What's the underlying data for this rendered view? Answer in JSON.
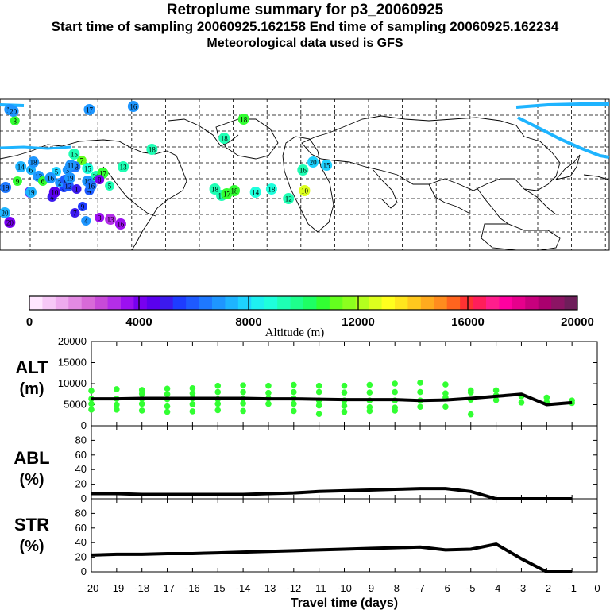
{
  "header": {
    "title": "Retroplume summary for p3_20060925",
    "sampling": "Start time of sampling 20060925.162158     End time of sampling 20060925.162234",
    "met": "Meteorological data used is GFS"
  },
  "colorbar": {
    "tick_labels": [
      "0",
      "4000",
      "8000",
      "12000",
      "16000",
      "20000"
    ],
    "title": "Altitude (m)",
    "colors": [
      "#ffe6ff",
      "#f7c8f7",
      "#eeaaee",
      "#e38ae3",
      "#d86ad8",
      "#c84ad8",
      "#b42ee8",
      "#9c10f0",
      "#7800f0",
      "#5a00ee",
      "#3c1aee",
      "#1e3cff",
      "#1e5aff",
      "#1e78ff",
      "#1e96ff",
      "#1eb4ff",
      "#1ed2ff",
      "#1ef0f0",
      "#1effdc",
      "#1effb4",
      "#1eff8c",
      "#1eff64",
      "#32ff32",
      "#64ff1e",
      "#8cff1e",
      "#b4ff1e",
      "#dcff1e",
      "#ffff1e",
      "#ffe61e",
      "#ffc81e",
      "#ffaa1e",
      "#ff8c1e",
      "#ff641e",
      "#ff3232",
      "#ff1e5a",
      "#ff1e8c",
      "#ff00a0",
      "#e6008c",
      "#c8007d",
      "#aa006e",
      "#8c1464",
      "#6e1e5a"
    ]
  },
  "map": {
    "labels": [
      {
        "t": "20",
        "c": "#1eb4ff",
        "lon": -177,
        "lat": -29
      },
      {
        "t": "19",
        "c": "#1e78ff",
        "lon": -175,
        "lat": -13
      },
      {
        "t": "5",
        "c": "#1ed2ff",
        "lon": -115,
        "lat": -3
      },
      {
        "t": "6",
        "c": "#1eb4ff",
        "lon": -145,
        "lat": -2
      },
      {
        "t": "3",
        "c": "#1e96ff",
        "lon": -102,
        "lat": -2
      },
      {
        "t": "15",
        "c": "#1effdc",
        "lon": -78,
        "lat": -1
      },
      {
        "t": "20",
        "c": "#1effb4",
        "lon": -68,
        "lat": -6
      },
      {
        "t": "17",
        "c": "#32ff32",
        "lon": -60,
        "lat": -4
      },
      {
        "t": "13",
        "c": "#1effb4",
        "lon": -36,
        "lat": 0
      },
      {
        "t": "4",
        "c": "#3c1aee",
        "lon": -120,
        "lat": -19
      },
      {
        "t": "4",
        "c": "#1e5aff",
        "lon": -76,
        "lat": -15
      },
      {
        "t": "4",
        "c": "#1e96ff",
        "lon": -80,
        "lat": -34
      },
      {
        "t": "3",
        "c": "#1e3cff",
        "lon": -106,
        "lat": -13
      },
      {
        "t": "11",
        "c": "#7800f0",
        "lon": -146,
        "lat": -16
      },
      {
        "t": "10",
        "c": "#5a00ee",
        "lon": -117,
        "lat": -16
      },
      {
        "t": "20",
        "c": "#7800f0",
        "lon": -170,
        "lat": -35
      },
      {
        "t": "18",
        "c": "#1effb4",
        "lon": -2,
        "lat": 11
      },
      {
        "t": "18",
        "c": "#32ff32",
        "lon": 72,
        "lat": 30
      },
      {
        "t": "18",
        "c": "#1effb4",
        "lon": 49,
        "lat": 18
      },
      {
        "t": "18",
        "c": "#1effb4",
        "lon": 38,
        "lat": -14
      },
      {
        "t": "16",
        "c": "#1effb4",
        "lon": 46,
        "lat": -18
      },
      {
        "t": "17",
        "c": "#32ff32",
        "lon": 52,
        "lat": -17
      },
      {
        "t": "18",
        "c": "#32ff32",
        "lon": 61,
        "lat": -15
      },
      {
        "t": "14",
        "c": "#1effdc",
        "lon": 86,
        "lat": -16
      },
      {
        "t": "18",
        "c": "#1effdc",
        "lon": 105,
        "lat": -14
      },
      {
        "t": "12",
        "c": "#1effb4",
        "lon": 125,
        "lat": -20
      },
      {
        "t": "10",
        "c": "#dcff1e",
        "lon": 144,
        "lat": -15
      },
      {
        "t": "16",
        "c": "#1effb4",
        "lon": 142,
        "lat": -2
      },
      {
        "t": "20",
        "c": "#1ed2ff",
        "lon": 154,
        "lat": 3
      },
      {
        "t": "15",
        "c": "#1ed2ff",
        "lon": 170,
        "lat": 1
      },
      {
        "t": "14",
        "c": "#1eb4ff",
        "lon": -157,
        "lat": 0
      },
      {
        "t": "18",
        "c": "#1e96ff",
        "lon": -142,
        "lat": 3
      },
      {
        "t": "9",
        "c": "#32ff32",
        "lon": -161,
        "lat": -9
      },
      {
        "t": "19",
        "c": "#1eb4ff",
        "lon": -145,
        "lat": -16
      },
      {
        "t": "13",
        "c": "#1e96ff",
        "lon": -136,
        "lat": -6
      },
      {
        "t": "6",
        "c": "#32ff32",
        "lon": -131,
        "lat": -9
      },
      {
        "t": "16",
        "c": "#1e96ff",
        "lon": -122,
        "lat": -7
      },
      {
        "t": "2",
        "c": "#1e96ff",
        "lon": -111,
        "lat": -10
      },
      {
        "t": "12",
        "c": "#1e5aff",
        "lon": -101,
        "lat": -12
      },
      {
        "t": "1",
        "c": "#3c1aee",
        "lon": -91,
        "lat": -14
      },
      {
        "t": "10",
        "c": "#1e96ff",
        "lon": -78,
        "lat": -9
      },
      {
        "t": "7",
        "c": "#3c1aee",
        "lon": -93,
        "lat": -29
      },
      {
        "t": "9",
        "c": "#1e3cff",
        "lon": -84,
        "lat": -25
      },
      {
        "t": "3",
        "c": "#9c10f0",
        "lon": -64,
        "lat": -32
      },
      {
        "t": "13",
        "c": "#b42ee8",
        "lon": -51,
        "lat": -33
      },
      {
        "t": "16",
        "c": "#9c10f0",
        "lon": -39,
        "lat": -36
      },
      {
        "t": "5",
        "c": "#1effb4",
        "lon": -52,
        "lat": -12
      },
      {
        "t": "8",
        "c": "#7800f0",
        "lon": -64,
        "lat": -8
      },
      {
        "t": "16",
        "c": "#1e78ff",
        "lon": -74,
        "lat": -12
      },
      {
        "t": "8",
        "c": "#32ff32",
        "lon": -164,
        "lat": 29
      },
      {
        "t": "17",
        "c": "#1e96ff",
        "lon": -76,
        "lat": 36
      },
      {
        "t": "16",
        "c": "#1e96ff",
        "lon": -24,
        "lat": 38
      },
      {
        "t": "19",
        "c": "#1e96ff",
        "lon": -170,
        "lat": 36
      },
      {
        "t": "20",
        "c": "#1e96ff",
        "lon": -166,
        "lat": 35
      },
      {
        "t": "7",
        "c": "#64ff1e",
        "lon": -85,
        "lat": 4
      },
      {
        "t": "15",
        "c": "#1effb4",
        "lon": -94,
        "lat": 8
      },
      {
        "t": "18",
        "c": "#1e78ff",
        "lon": -93,
        "lat": 0
      },
      {
        "t": "11",
        "c": "#1e96ff",
        "lon": -98,
        "lat": 1
      },
      {
        "t": "1",
        "c": "#1e5aff",
        "lon": -105,
        "lat": -8
      },
      {
        "t": "19",
        "c": "#1e96ff",
        "lon": -99,
        "lat": -7
      }
    ]
  },
  "chart_data": [
    {
      "type": "scatter+line",
      "panel_label": "ALT\n(m)",
      "y_ticks": [
        "20000",
        "15000",
        "10000",
        "5000",
        "0"
      ],
      "ylim": [
        0,
        20000
      ],
      "x": [
        -20,
        -19,
        -18,
        -17,
        -16,
        -15,
        -14,
        -13,
        -12,
        -11,
        -10,
        -9,
        -8,
        -7,
        -6,
        -5,
        -4,
        -3,
        -2,
        -1
      ],
      "values": [
        6400,
        6400,
        6500,
        6500,
        6500,
        6500,
        6500,
        6400,
        6400,
        6300,
        6200,
        6200,
        6200,
        6000,
        6100,
        6500,
        7000,
        7500,
        5000,
        5500
      ],
      "points": [
        {
          "x": -20,
          "ys": [
            8300,
            6400,
            5200,
            3800
          ]
        },
        {
          "x": -19,
          "ys": [
            8700,
            6400,
            5000,
            3800
          ]
        },
        {
          "x": -18,
          "ys": [
            8500,
            7600,
            6400,
            5200,
            3600
          ]
        },
        {
          "x": -17,
          "ys": [
            8800,
            7500,
            6300,
            4600,
            3300
          ]
        },
        {
          "x": -16,
          "ys": [
            8900,
            7700,
            6500,
            5100,
            3400
          ]
        },
        {
          "x": -15,
          "ys": [
            9500,
            8000,
            6300,
            5200,
            3700
          ]
        },
        {
          "x": -14,
          "ys": [
            9600,
            8000,
            6500,
            5300,
            3500
          ]
        },
        {
          "x": -13,
          "ys": [
            9500,
            7800,
            6500,
            5200
          ]
        },
        {
          "x": -12,
          "ys": [
            9700,
            8000,
            6500,
            5200,
            3500
          ]
        },
        {
          "x": -11,
          "ys": [
            9500,
            8000,
            6000,
            4800,
            2800
          ]
        },
        {
          "x": -10,
          "ys": [
            9500,
            7900,
            6000,
            4700,
            3300
          ]
        },
        {
          "x": -9,
          "ys": [
            9700,
            7900,
            6000,
            4400,
            3500
          ]
        },
        {
          "x": -8,
          "ys": [
            10000,
            8000,
            6000,
            4300,
            3600
          ]
        },
        {
          "x": -7,
          "ys": [
            10200,
            8000,
            6000,
            4500
          ]
        },
        {
          "x": -6,
          "ys": [
            9800,
            7700,
            6700,
            4500
          ]
        },
        {
          "x": -5,
          "ys": [
            8400,
            7900,
            6200,
            2700
          ]
        },
        {
          "x": -4,
          "ys": [
            8400,
            7200,
            6100
          ]
        },
        {
          "x": -3,
          "ys": [
            7000,
            5500
          ]
        },
        {
          "x": -2,
          "ys": [
            6700,
            5600
          ]
        },
        {
          "x": -1,
          "ys": [
            6000,
            5400
          ]
        }
      ]
    },
    {
      "type": "line",
      "panel_label": "ABL\n(%)",
      "y_ticks": [
        "80",
        "60",
        "40",
        "20",
        "0"
      ],
      "ylim": [
        0,
        100
      ],
      "x": [
        -20,
        -19,
        -18,
        -17,
        -16,
        -15,
        -14,
        -13,
        -12,
        -11,
        -10,
        -9,
        -8,
        -7,
        -6,
        -5,
        -4,
        -3,
        -2,
        -1
      ],
      "values": [
        7,
        7,
        6,
        6,
        6,
        6,
        6,
        7,
        8,
        10,
        11,
        12,
        13,
        14,
        14,
        10,
        0,
        0,
        0,
        0
      ]
    },
    {
      "type": "line",
      "panel_label": "STR\n(%)",
      "y_ticks": [
        "80",
        "60",
        "40",
        "20",
        "0"
      ],
      "ylim": [
        0,
        100
      ],
      "x": [
        -20,
        -19,
        -18,
        -17,
        -16,
        -15,
        -14,
        -13,
        -12,
        -11,
        -10,
        -9,
        -8,
        -7,
        -6,
        -5,
        -4,
        -3,
        -2,
        -1
      ],
      "values": [
        23,
        24,
        24,
        25,
        25,
        26,
        27,
        28,
        29,
        30,
        31,
        32,
        33,
        34,
        30,
        31,
        38,
        18,
        0,
        0
      ],
      "x_tick_labels": [
        "-20",
        "-19",
        "-18",
        "-17",
        "-16",
        "-15",
        "-14",
        "-13",
        "-12",
        "-11",
        "-10",
        "-9",
        "-8",
        "-7",
        "-6",
        "-5",
        "-4",
        "-3",
        "-2",
        "-1",
        "0"
      ],
      "xlabel": "Travel time (days)"
    }
  ],
  "colors": {
    "green_points": "#32ff32",
    "line": "#000000",
    "path_cyan": "#1eb4ff"
  }
}
